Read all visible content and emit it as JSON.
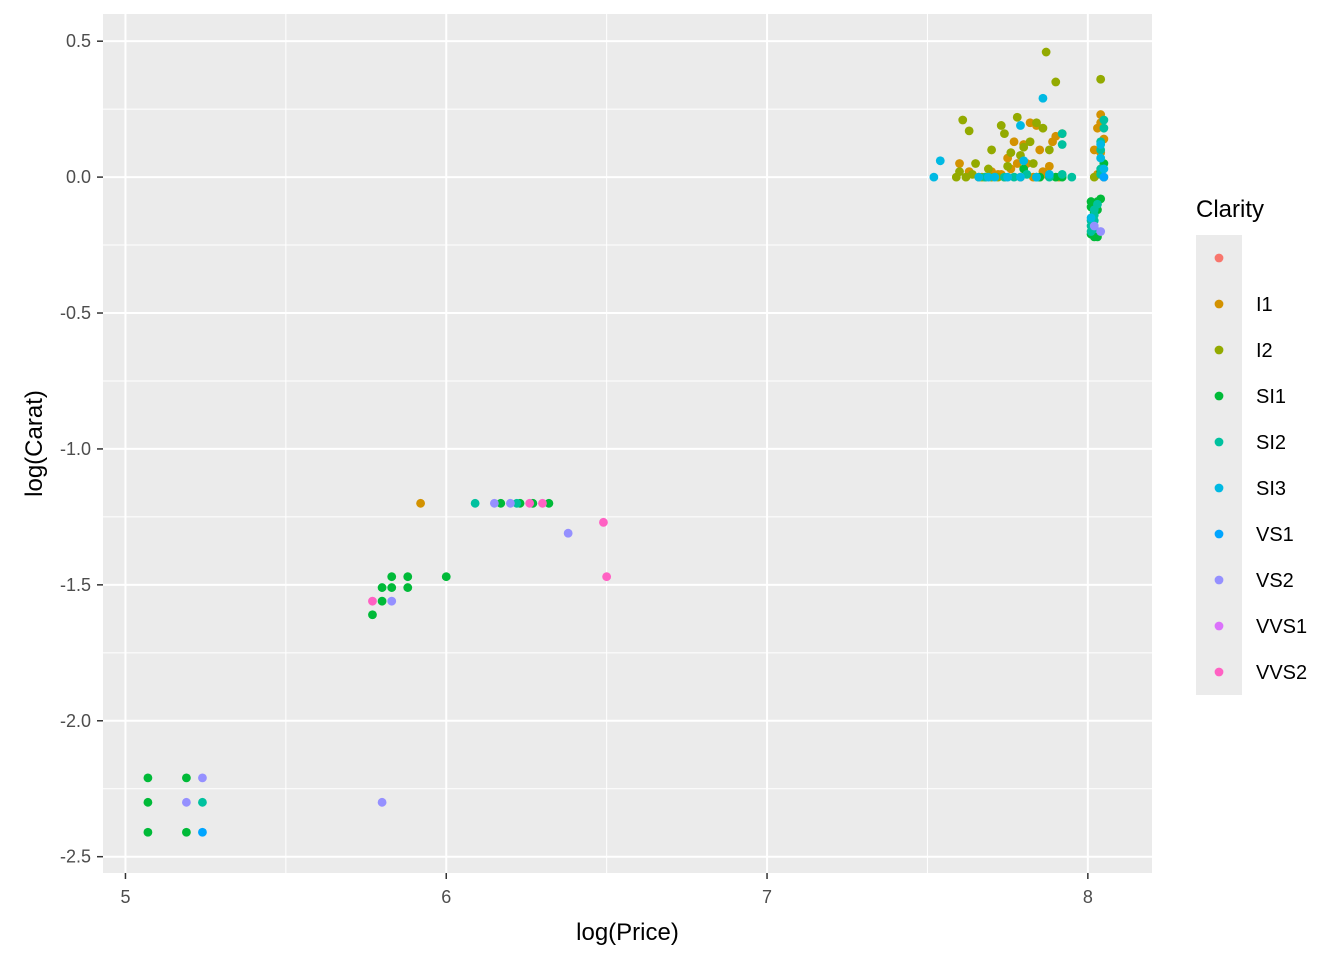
{
  "chart_data": {
    "type": "scatter",
    "title": "",
    "xlabel": "log(Price)",
    "ylabel": "log(Carat)",
    "xlim": [
      4.93,
      8.2
    ],
    "ylim": [
      -2.56,
      0.6
    ],
    "x_ticks": [
      5,
      6,
      7,
      8
    ],
    "y_ticks": [
      0.5,
      0.0,
      -0.5,
      -1.0,
      -1.5,
      -2.0,
      -2.5
    ],
    "y_tick_labels": [
      "0.5",
      "0.0",
      "-0.5",
      "-1.0",
      "-1.5",
      "-2.0",
      "-2.5"
    ],
    "x_tick_labels": [
      "5",
      "6",
      "7",
      "8"
    ],
    "grid": true,
    "background": "#ebebeb",
    "legend": {
      "title": "Clarity",
      "position": "right",
      "entries": [
        {
          "label": "",
          "color": "#F8766D"
        },
        {
          "label": "I1",
          "color": "#D39200"
        },
        {
          "label": "I2",
          "color": "#93AA00"
        },
        {
          "label": "SI1",
          "color": "#00BA38"
        },
        {
          "label": "SI2",
          "color": "#00C19F"
        },
        {
          "label": "SI3",
          "color": "#00B9E3"
        },
        {
          "label": "VS1",
          "color": "#00A5FF"
        },
        {
          "label": "VS2",
          "color": "#9590FF"
        },
        {
          "label": "VVS1",
          "color": "#DB72FB"
        },
        {
          "label": "VVS2",
          "color": "#FF61C3"
        }
      ]
    },
    "series": [
      {
        "name": "I1",
        "points": [
          [
            5.92,
            -1.2
          ],
          [
            7.63,
            0.02
          ],
          [
            7.66,
            0.0
          ],
          [
            7.68,
            0.0
          ],
          [
            7.7,
            0.02
          ],
          [
            7.72,
            0.01
          ],
          [
            7.74,
            0.0
          ],
          [
            7.76,
            0.03
          ],
          [
            7.78,
            0.05
          ],
          [
            7.8,
            0.12
          ],
          [
            7.82,
            0.2
          ],
          [
            7.84,
            0.19
          ],
          [
            7.85,
            0.1
          ],
          [
            7.86,
            0.02
          ],
          [
            7.88,
            0.04
          ],
          [
            7.9,
            0.15
          ],
          [
            7.91,
            0.0
          ],
          [
            7.92,
            0.16
          ],
          [
            7.75,
            0.07
          ],
          [
            7.79,
            0.0
          ],
          [
            7.83,
            0.0
          ],
          [
            7.87,
            0.01
          ],
          [
            7.6,
            0.05
          ],
          [
            7.73,
            0.01
          ],
          [
            8.02,
            0.1
          ],
          [
            8.03,
            0.18
          ],
          [
            8.04,
            0.23
          ],
          [
            8.04,
            0.2
          ],
          [
            8.05,
            0.14
          ],
          [
            8.03,
            0.01
          ],
          [
            8.04,
            0.09
          ],
          [
            8.05,
            0.0
          ],
          [
            7.77,
            0.13
          ],
          [
            7.81,
            0.05
          ],
          [
            7.89,
            0.13
          ]
        ]
      },
      {
        "name": "I2",
        "points": [
          [
            7.59,
            0.0
          ],
          [
            7.6,
            0.02
          ],
          [
            7.61,
            0.21
          ],
          [
            7.63,
            0.17
          ],
          [
            7.65,
            0.05
          ],
          [
            7.67,
            0.0
          ],
          [
            7.69,
            0.03
          ],
          [
            7.7,
            0.1
          ],
          [
            7.72,
            0.0
          ],
          [
            7.73,
            0.19
          ],
          [
            7.74,
            0.16
          ],
          [
            7.76,
            0.09
          ],
          [
            7.78,
            0.22
          ],
          [
            7.8,
            0.11
          ],
          [
            7.82,
            0.13
          ],
          [
            7.84,
            0.2
          ],
          [
            7.86,
            0.18
          ],
          [
            7.87,
            0.46
          ],
          [
            7.88,
            0.1
          ],
          [
            7.9,
            0.35
          ],
          [
            7.64,
            0.01
          ],
          [
            7.75,
            0.04
          ],
          [
            7.79,
            0.08
          ],
          [
            7.83,
            0.05
          ],
          [
            8.04,
            0.36
          ],
          [
            8.02,
            0.0
          ],
          [
            7.7,
            0.0
          ],
          [
            7.85,
            0.0
          ],
          [
            7.62,
            0.0
          ]
        ]
      },
      {
        "name": "SI1",
        "points": [
          [
            5.07,
            -2.21
          ],
          [
            5.07,
            -2.3
          ],
          [
            5.07,
            -2.41
          ],
          [
            5.19,
            -2.21
          ],
          [
            5.19,
            -2.41
          ],
          [
            5.77,
            -1.61
          ],
          [
            5.8,
            -1.51
          ],
          [
            5.8,
            -1.56
          ],
          [
            5.83,
            -1.47
          ],
          [
            5.83,
            -1.51
          ],
          [
            5.88,
            -1.47
          ],
          [
            5.88,
            -1.51
          ],
          [
            6.0,
            -1.47
          ],
          [
            6.17,
            -1.2
          ],
          [
            6.23,
            -1.2
          ],
          [
            6.27,
            -1.2
          ],
          [
            6.32,
            -1.2
          ],
          [
            7.92,
            0.0
          ],
          [
            7.85,
            0.0
          ],
          [
            7.8,
            0.03
          ],
          [
            7.9,
            0.0
          ],
          [
            8.01,
            -0.09
          ],
          [
            8.01,
            -0.11
          ],
          [
            8.02,
            -0.13
          ],
          [
            8.03,
            -0.12
          ],
          [
            8.03,
            -0.09
          ],
          [
            8.04,
            -0.08
          ],
          [
            8.02,
            -0.22
          ],
          [
            8.03,
            -0.22
          ],
          [
            8.01,
            -0.21
          ],
          [
            8.04,
            0.02
          ],
          [
            8.05,
            0.05
          ]
        ]
      },
      {
        "name": "SI2",
        "points": [
          [
            5.24,
            -2.3
          ],
          [
            6.09,
            -1.2
          ],
          [
            6.22,
            -1.2
          ],
          [
            7.92,
            0.01
          ],
          [
            7.88,
            0.0
          ],
          [
            7.84,
            0.0
          ],
          [
            7.92,
            0.12
          ],
          [
            7.92,
            0.16
          ],
          [
            7.81,
            0.01
          ],
          [
            7.77,
            0.0
          ],
          [
            8.01,
            -0.16
          ],
          [
            8.01,
            -0.18
          ],
          [
            8.01,
            -0.2
          ],
          [
            8.02,
            -0.14
          ],
          [
            8.03,
            -0.1
          ],
          [
            8.02,
            -0.19
          ],
          [
            8.04,
            0.01
          ],
          [
            8.04,
            0.13
          ],
          [
            8.05,
            0.21
          ],
          [
            8.04,
            0.03
          ],
          [
            8.05,
            0.18
          ],
          [
            8.04,
            0.1
          ],
          [
            7.95,
            0.0
          ],
          [
            7.74,
            0.0
          ],
          [
            7.68,
            0.0
          ],
          [
            8.02,
            -0.16
          ],
          [
            8.02,
            -0.12
          ]
        ]
      },
      {
        "name": "SI3",
        "points": [
          [
            7.52,
            0.0
          ],
          [
            7.54,
            0.06
          ],
          [
            7.66,
            0.0
          ],
          [
            7.71,
            0.0
          ],
          [
            7.79,
            0.0
          ],
          [
            7.79,
            0.19
          ],
          [
            7.86,
            0.29
          ],
          [
            7.88,
            0.01
          ],
          [
            7.84,
            0.0
          ],
          [
            8.04,
            0.07
          ],
          [
            8.04,
            0.12
          ],
          [
            8.05,
            0.03
          ],
          [
            8.01,
            -0.15
          ],
          [
            7.75,
            0.0
          ],
          [
            7.8,
            0.06
          ],
          [
            7.69,
            0.0
          ]
        ]
      },
      {
        "name": "VS1",
        "points": [
          [
            5.24,
            -2.41
          ],
          [
            8.05,
            0.0
          ]
        ]
      },
      {
        "name": "VS2",
        "points": [
          [
            5.19,
            -2.3
          ],
          [
            5.24,
            -2.21
          ],
          [
            5.8,
            -2.3
          ],
          [
            5.83,
            -1.56
          ],
          [
            6.15,
            -1.2
          ],
          [
            6.2,
            -1.2
          ],
          [
            6.38,
            -1.31
          ],
          [
            8.04,
            -0.2
          ],
          [
            8.02,
            -0.18
          ]
        ]
      },
      {
        "name": "VVS2",
        "points": [
          [
            5.77,
            -1.56
          ],
          [
            6.26,
            -1.2
          ],
          [
            6.3,
            -1.2
          ],
          [
            6.49,
            -1.27
          ],
          [
            6.5,
            -1.47
          ]
        ]
      }
    ]
  }
}
